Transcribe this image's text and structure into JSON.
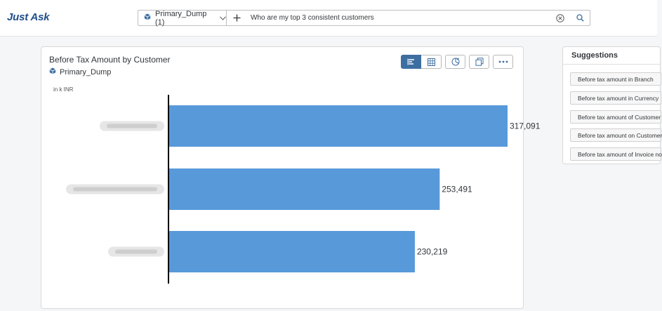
{
  "app": {
    "title": "Just Ask"
  },
  "search": {
    "source_label": "Primary_Dump (1)",
    "query": "Who are my top 3 consistent customers"
  },
  "card": {
    "title": "Before Tax Amount by Customer",
    "source": "Primary_Dump",
    "unit": "in k INR"
  },
  "toolbar_icons": [
    "bar-chart-icon",
    "table-icon",
    "chart-type-icon",
    "copy-icon",
    "more-icon"
  ],
  "suggestions": {
    "header": "Suggestions",
    "items": [
      "Before tax amount in Branch",
      "Before tax amount in Currency",
      "Before tax amount of Customer",
      "Before tax amount on Customer",
      "Before tax amount of Invoice no"
    ]
  },
  "chart_data": {
    "type": "bar",
    "orientation": "horizontal",
    "title": "Before Tax Amount by Customer",
    "ylabel": "in k INR",
    "categories": [
      "",
      "",
      ""
    ],
    "values": [
      317091,
      253491,
      230219
    ],
    "value_labels": [
      "317,091",
      "253,491",
      "230,219"
    ],
    "bar_color": "#5899da",
    "xlim": [
      0,
      350000
    ],
    "grid": false,
    "legend": "none"
  }
}
